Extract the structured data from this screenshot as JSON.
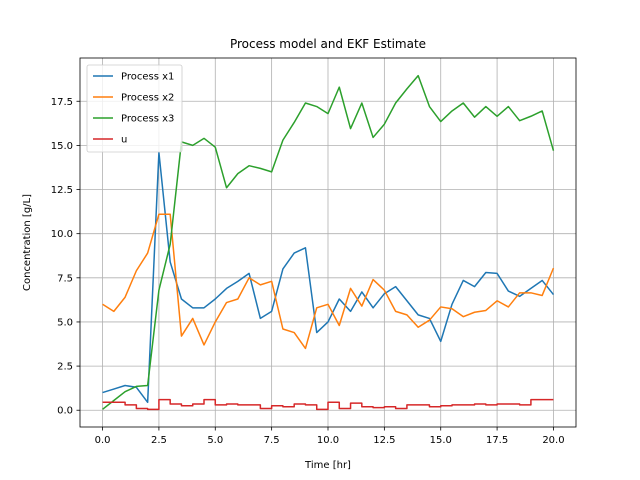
{
  "chart_data": {
    "type": "line",
    "title": "Process model and EKF Estimate",
    "xlabel": "Time [hr]",
    "ylabel": "Concentration [g/L]",
    "xlim": [
      -1.0,
      21.0
    ],
    "ylim": [
      -0.95,
      19.95
    ],
    "xticks": [
      0.0,
      2.5,
      5.0,
      7.5,
      10.0,
      12.5,
      15.0,
      17.5,
      20.0
    ],
    "xtick_labels": [
      "0.0",
      "2.5",
      "5.0",
      "7.5",
      "10.0",
      "12.5",
      "15.0",
      "17.5",
      "20.0"
    ],
    "yticks": [
      0.0,
      2.5,
      5.0,
      7.5,
      10.0,
      12.5,
      15.0,
      17.5
    ],
    "ytick_labels": [
      "0.0",
      "2.5",
      "5.0",
      "7.5",
      "10.0",
      "12.5",
      "15.0",
      "17.5"
    ],
    "grid": true,
    "legend_position": "top-left",
    "series": [
      {
        "name": "Process x1",
        "color": "#1f77b4",
        "step": false,
        "x": [
          0,
          0.5,
          1.0,
          1.5,
          2.0,
          2.5,
          3.0,
          3.5,
          4.0,
          4.5,
          5.0,
          5.5,
          6.0,
          6.5,
          7.0,
          7.5,
          8.0,
          8.5,
          9.0,
          9.5,
          10.0,
          10.5,
          11.0,
          11.5,
          12.0,
          12.5,
          13.0,
          13.5,
          14.0,
          14.5,
          15.0,
          15.5,
          16.0,
          16.5,
          17.0,
          17.5,
          18.0,
          18.5,
          19.0,
          19.5,
          20.0
        ],
        "y": [
          1.0,
          1.2,
          1.4,
          1.3,
          0.45,
          14.6,
          8.4,
          6.3,
          5.8,
          5.8,
          6.3,
          6.9,
          7.3,
          7.75,
          5.2,
          5.6,
          8.0,
          8.9,
          9.2,
          4.4,
          5.0,
          6.3,
          5.6,
          6.7,
          5.8,
          6.6,
          7.0,
          6.2,
          5.4,
          5.2,
          3.9,
          6.0,
          7.35,
          7.0,
          7.8,
          7.75,
          6.75,
          6.45,
          6.9,
          7.35,
          6.55
        ]
      },
      {
        "name": "Process x2",
        "color": "#ff7f0e",
        "step": false,
        "x": [
          0,
          0.5,
          1.0,
          1.5,
          2.0,
          2.5,
          3.0,
          3.5,
          4.0,
          4.5,
          5.0,
          5.5,
          6.0,
          6.5,
          7.0,
          7.5,
          8.0,
          8.5,
          9.0,
          9.5,
          10.0,
          10.5,
          11.0,
          11.5,
          12.0,
          12.5,
          13.0,
          13.5,
          14.0,
          14.5,
          15.0,
          15.5,
          16.0,
          16.5,
          17.0,
          17.5,
          18.0,
          18.5,
          19.0,
          19.5,
          20.0
        ],
        "y": [
          6.0,
          5.6,
          6.4,
          7.9,
          8.9,
          11.1,
          11.1,
          4.2,
          5.2,
          3.7,
          5.0,
          6.1,
          6.3,
          7.5,
          7.1,
          7.3,
          4.6,
          4.4,
          3.5,
          5.8,
          6.0,
          4.8,
          6.9,
          5.9,
          7.4,
          6.8,
          5.6,
          5.4,
          4.7,
          5.1,
          5.85,
          5.75,
          5.3,
          5.55,
          5.65,
          6.2,
          5.85,
          6.65,
          6.65,
          6.5,
          8.05
        ]
      },
      {
        "name": "Process x3",
        "color": "#2ca02c",
        "step": false,
        "x": [
          0,
          0.5,
          1.0,
          1.5,
          2.0,
          2.5,
          3.0,
          3.5,
          4.0,
          4.5,
          5.0,
          5.5,
          6.0,
          6.5,
          7.0,
          7.5,
          8.0,
          8.5,
          9.0,
          9.5,
          10.0,
          10.5,
          11.0,
          11.5,
          12.0,
          12.5,
          13.0,
          13.5,
          14.0,
          14.5,
          15.0,
          15.5,
          16.0,
          16.5,
          17.0,
          17.5,
          18.0,
          18.5,
          19.0,
          19.5,
          20.0
        ],
        "y": [
          0.05,
          0.55,
          1.05,
          1.35,
          1.4,
          6.8,
          9.4,
          15.2,
          15.0,
          15.4,
          14.9,
          12.6,
          13.4,
          13.85,
          13.7,
          13.5,
          15.3,
          16.3,
          17.4,
          17.2,
          16.8,
          18.3,
          15.95,
          17.4,
          15.45,
          16.2,
          17.4,
          18.2,
          18.95,
          17.2,
          16.35,
          16.95,
          17.4,
          16.6,
          17.2,
          16.65,
          17.2,
          16.4,
          16.65,
          16.95,
          14.7
        ]
      },
      {
        "name": " u",
        "color": "#d62728",
        "step": true,
        "x": [
          0,
          0.5,
          1.0,
          1.5,
          2.0,
          2.5,
          3.0,
          3.5,
          4.0,
          4.5,
          5.0,
          5.5,
          6.0,
          6.5,
          7.0,
          7.5,
          8.0,
          8.5,
          9.0,
          9.5,
          10.0,
          10.5,
          11.0,
          11.5,
          12.0,
          12.5,
          13.0,
          13.5,
          14.0,
          14.5,
          15.0,
          15.5,
          16.0,
          16.5,
          17.0,
          17.5,
          18.0,
          18.5,
          19.0,
          19.5
        ],
        "y": [
          0.45,
          0.45,
          0.3,
          0.1,
          0.05,
          0.6,
          0.35,
          0.25,
          0.35,
          0.6,
          0.3,
          0.35,
          0.3,
          0.3,
          0.1,
          0.25,
          0.2,
          0.35,
          0.3,
          0.05,
          0.45,
          0.1,
          0.4,
          0.2,
          0.15,
          0.2,
          0.1,
          0.3,
          0.3,
          0.2,
          0.25,
          0.3,
          0.3,
          0.35,
          0.3,
          0.35,
          0.35,
          0.3,
          0.6,
          0.6
        ]
      }
    ]
  }
}
